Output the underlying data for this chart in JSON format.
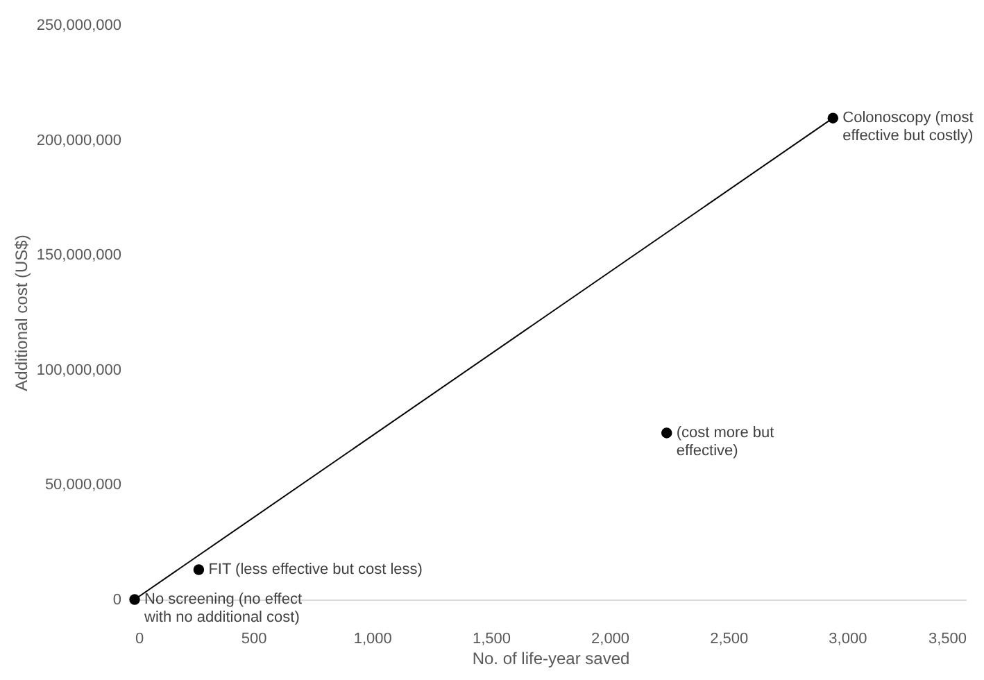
{
  "chart_data": {
    "type": "scatter",
    "xlabel": "No. of life-year saved",
    "ylabel": "Additional cost (US$)",
    "xlim": [
      0,
      3500
    ],
    "xticks": [
      0,
      500,
      {
        "value": 1000,
        "label": "1,000"
      },
      {
        "value": 1500,
        "label": "1,500"
      },
      {
        "value": 2000,
        "label": "2,000"
      },
      {
        "value": 2500,
        "label": "2,500"
      },
      {
        "value": 3000,
        "label": "3,000"
      },
      {
        "value": 3500,
        "label": "3,500"
      }
    ],
    "ylim": [
      0,
      250000000
    ],
    "yticks": [
      0,
      {
        "value": 50000000,
        "label": "50,000,000"
      },
      {
        "value": 100000000,
        "label": "100,000,000"
      },
      {
        "value": 150000000,
        "label": "150,000,000"
      },
      {
        "value": 200000000,
        "label": "200,000,000"
      },
      {
        "value": 250000000,
        "label": "250,000,000"
      }
    ],
    "grid": false,
    "marker": "circle",
    "series": [
      {
        "type": "line",
        "marker": "none",
        "color": "#000000",
        "x": [
          0,
          2940
        ],
        "values": [
          0,
          209500000
        ]
      },
      {
        "color": "#000000",
        "x": [
          0,
          270,
          2240,
          2940
        ],
        "values": [
          0,
          13000000,
          72500000,
          209500000
        ]
      }
    ],
    "annotations": [
      {
        "text": "No screening (no effect\nwith no additional cost)",
        "x": 0,
        "y": 0
      },
      {
        "text": "FIT (less effective but cost less)",
        "x": 270,
        "y": 13000000
      },
      {
        "text": "(cost more but\neffective)",
        "x": 2240,
        "y": 72500000
      },
      {
        "text": "Colonoscopy (most\neffective but costly)",
        "x": 2940,
        "y": 209500000
      }
    ]
  }
}
